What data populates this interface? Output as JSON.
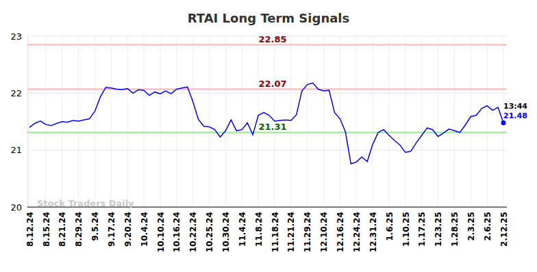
{
  "chart_data": {
    "type": "line",
    "title": "RTAI Long Term Signals",
    "categories": [
      "8.12.24",
      null,
      null,
      "8.15.24",
      null,
      null,
      "8.21.24",
      null,
      null,
      "8.29.24",
      null,
      null,
      "9.5.24",
      null,
      null,
      "9.17.24",
      null,
      null,
      "9.20.24",
      null,
      null,
      "10.4.24",
      null,
      null,
      "10.10.24",
      null,
      null,
      "10.16.24",
      null,
      null,
      "10.22.24",
      null,
      null,
      "10.25.24",
      null,
      null,
      "10.30.24",
      null,
      null,
      "11.4.24",
      null,
      null,
      "11.8.24",
      null,
      null,
      "11.18.24",
      null,
      null,
      "11.21.24",
      null,
      null,
      "11.29.24",
      null,
      null,
      "12.10.24",
      null,
      null,
      "12.16.24",
      null,
      null,
      "12.24.24",
      null,
      null,
      "12.31.24",
      null,
      null,
      "1.6.25",
      null,
      null,
      "1.10.25",
      null,
      null,
      "1.17.25",
      null,
      null,
      "1.23.25",
      null,
      null,
      "1.28.25",
      null,
      null,
      "2.3.25",
      null,
      null,
      "2.6.25",
      null,
      null,
      "2.12.25"
    ],
    "values": [
      21.4,
      21.47,
      21.51,
      21.45,
      21.43,
      21.47,
      21.5,
      21.49,
      21.52,
      21.51,
      21.53,
      21.55,
      21.68,
      21.93,
      22.1,
      22.09,
      22.07,
      22.06,
      22.08,
      22.0,
      22.06,
      22.05,
      21.96,
      22.02,
      21.99,
      22.04,
      21.99,
      22.07,
      22.09,
      22.11,
      21.85,
      21.54,
      21.42,
      21.41,
      21.36,
      21.23,
      21.34,
      21.53,
      21.34,
      21.36,
      21.48,
      21.27,
      21.61,
      21.66,
      21.61,
      21.51,
      21.52,
      21.53,
      21.52,
      21.62,
      22.04,
      22.15,
      22.18,
      22.07,
      22.04,
      22.05,
      21.66,
      21.55,
      21.32,
      20.76,
      20.79,
      20.88,
      20.8,
      21.1,
      21.31,
      21.36,
      21.26,
      21.17,
      21.09,
      20.96,
      20.98,
      21.13,
      21.26,
      21.39,
      21.36,
      21.24,
      21.3,
      21.37,
      21.34,
      21.31,
      21.44,
      21.59,
      21.61,
      21.73,
      21.78,
      21.7,
      21.75,
      21.48
    ],
    "color": "#0000ff",
    "marker": "circle",
    "ylim": [
      20,
      23
    ],
    "yticks": [
      20,
      21,
      22,
      23
    ],
    "grid": true,
    "reference_lines": [
      {
        "value": 22.85,
        "label": "22.85",
        "color": "#ffb3b3",
        "label_color": "#8b0000"
      },
      {
        "value": 22.07,
        "label": "22.07",
        "color": "#ffb3b3",
        "label_color": "#8b0000"
      },
      {
        "value": 21.31,
        "label": "21.31",
        "color": "#90ee90",
        "label_color": "#006400"
      }
    ],
    "last_point": {
      "time": "13:44",
      "value_label": "21.48"
    },
    "watermark": "Stock Traders Daily"
  }
}
